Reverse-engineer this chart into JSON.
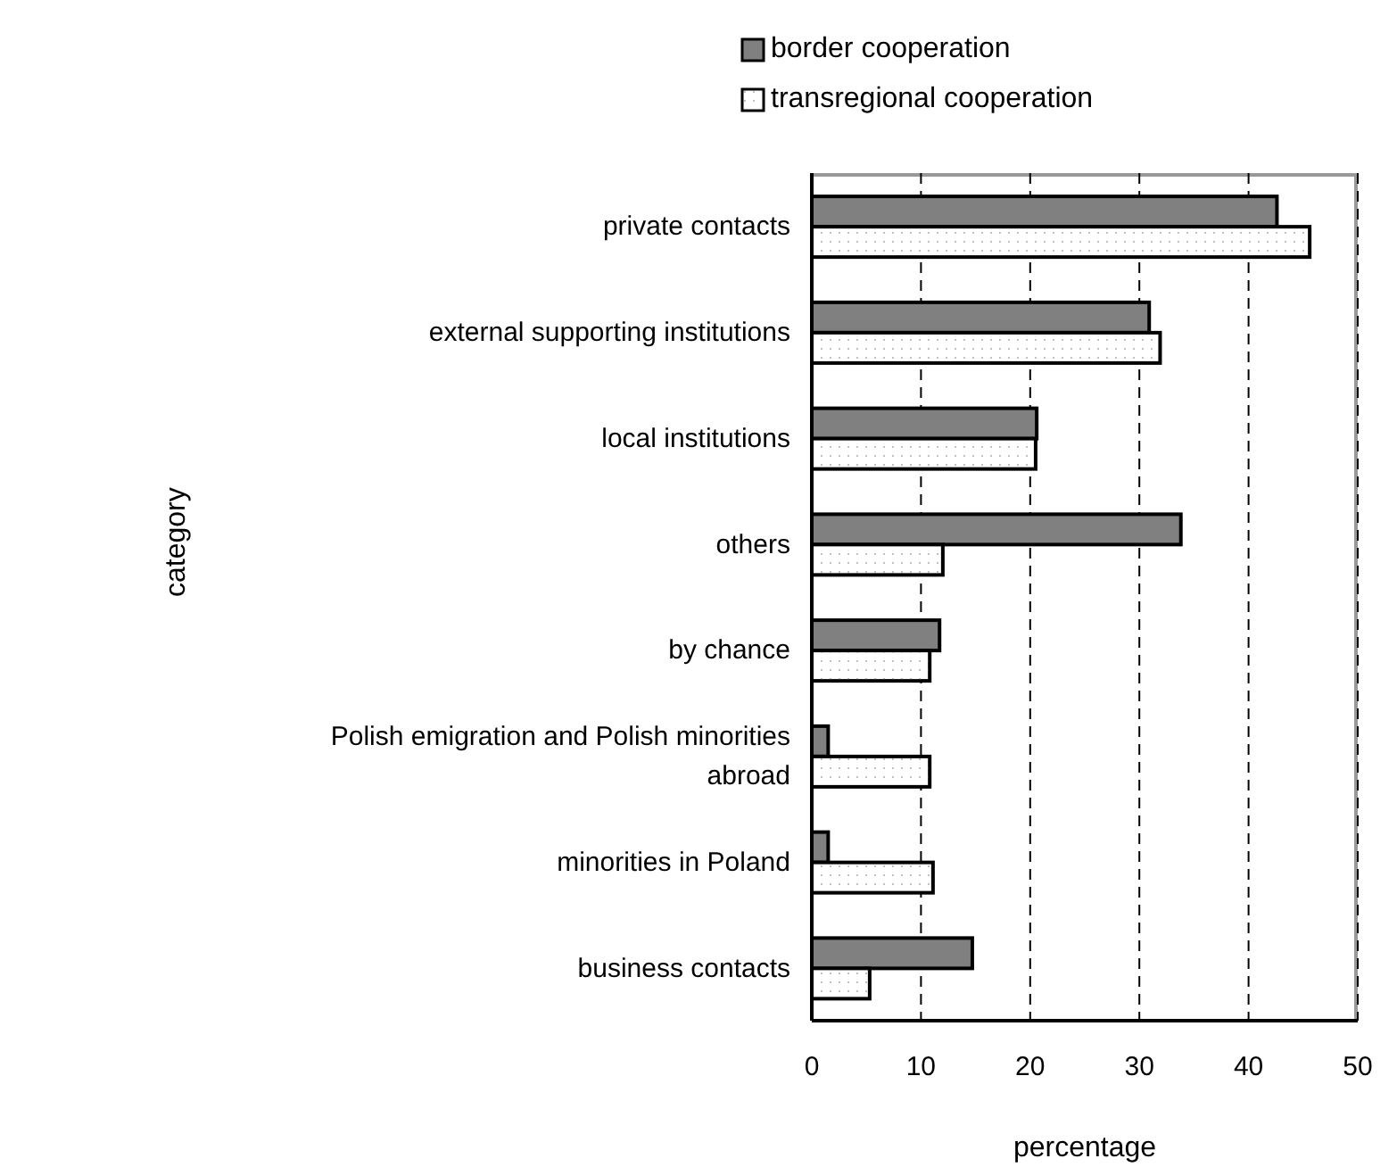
{
  "chart_data": {
    "type": "bar",
    "orientation": "horizontal",
    "xlabel": "percentage",
    "ylabel": "category",
    "categories": [
      "private contacts",
      "external supporting institutions",
      "local institutions",
      "others",
      "by chance",
      "Polish emigration and Polish minorities abroad",
      "minorities in Poland",
      "business contacts"
    ],
    "series": [
      {
        "name": "border cooperation",
        "color": "#808080",
        "values": [
          42.6,
          30.9,
          20.6,
          33.8,
          11.7,
          1.5,
          1.5,
          14.7
        ]
      },
      {
        "name": "transregional cooperation",
        "color": "#ffffff",
        "values": [
          45.6,
          31.9,
          20.5,
          12.0,
          10.8,
          10.8,
          11.1,
          5.3
        ]
      }
    ],
    "xlim": [
      0,
      50
    ],
    "xticks": [
      0,
      10,
      20,
      30,
      40,
      50
    ],
    "grid": "x",
    "legend": "top"
  }
}
